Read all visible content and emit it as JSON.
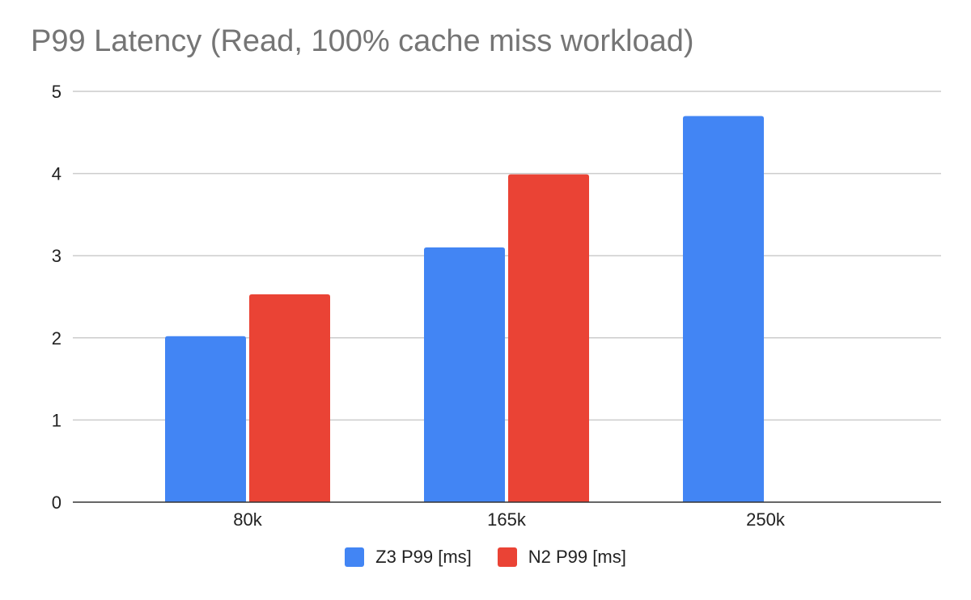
{
  "chart_data": {
    "type": "bar",
    "title": "P99 Latency (Read, 100% cache miss workload)",
    "xlabel": "",
    "ylabel": "",
    "categories": [
      "80k",
      "165k",
      "250k"
    ],
    "series": [
      {
        "name": "Z3 P99 [ms]",
        "color": "#4285F4",
        "values": [
          2.02,
          3.1,
          4.7
        ]
      },
      {
        "name": "N2 P99 [ms]",
        "color": "#EA4335",
        "values": [
          2.53,
          3.99,
          null
        ]
      }
    ],
    "ylim": [
      0,
      5
    ],
    "yticks": [
      0,
      1,
      2,
      3,
      4,
      5
    ],
    "grid": true,
    "legend_position": "bottom"
  }
}
